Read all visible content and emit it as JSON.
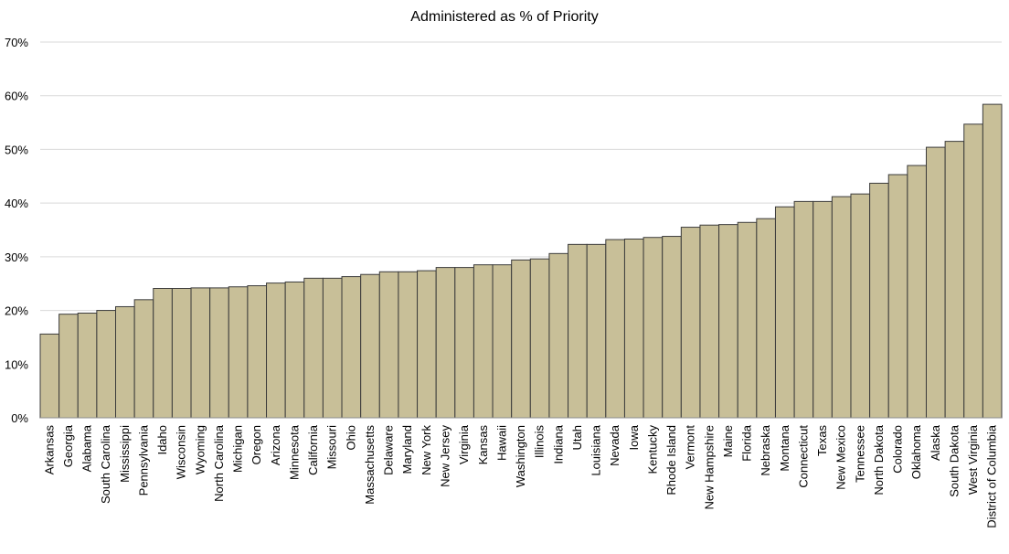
{
  "chart_data": {
    "type": "bar",
    "title": "Administered as % of Priority",
    "xlabel": "",
    "ylabel": "",
    "ylim": [
      0,
      70
    ],
    "yticks": [
      0,
      10,
      20,
      30,
      40,
      50,
      60,
      70
    ],
    "ytick_labels": [
      "0%",
      "10%",
      "20%",
      "30%",
      "40%",
      "50%",
      "60%",
      "70%"
    ],
    "grid": true,
    "legend": "none",
    "bar_color": "#c8bf98",
    "categories": [
      "Arkansas",
      "Georgia",
      "Alabama",
      "South Carolina",
      "Mississippi",
      "Pennsylvania",
      "Idaho",
      "Wisconsin",
      "Wyoming",
      "North Carolina",
      "Michigan",
      "Oregon",
      "Arizona",
      "Minnesota",
      "California",
      "Missouri",
      "Ohio",
      "Massachusetts",
      "Delaware",
      "Maryland",
      "New York",
      "New Jersey",
      "Virginia",
      "Kansas",
      "Hawaii",
      "Washington",
      "Illinois",
      "Indiana",
      "Utah",
      "Louisiana",
      "Nevada",
      "Iowa",
      "Kentucky",
      "Rhode Island",
      "Vermont",
      "New Hampshire",
      "Maine",
      "Florida",
      "Nebraska",
      "Montana",
      "Connecticut",
      "Texas",
      "New Mexico",
      "Tennessee",
      "North Dakota",
      "Colorado",
      "Oklahoma",
      "Alaska",
      "South Dakota",
      "West Virginia",
      "District of Columbia"
    ],
    "values": [
      15.6,
      19.3,
      19.5,
      20.0,
      20.7,
      22.0,
      24.1,
      24.1,
      24.2,
      24.2,
      24.4,
      24.6,
      25.1,
      25.3,
      26.0,
      26.0,
      26.3,
      26.7,
      27.2,
      27.2,
      27.4,
      28.0,
      28.0,
      28.5,
      28.5,
      29.4,
      29.6,
      30.6,
      32.3,
      32.3,
      33.2,
      33.3,
      33.6,
      33.8,
      35.5,
      35.9,
      36.0,
      36.4,
      37.1,
      39.3,
      40.3,
      40.3,
      41.2,
      41.7,
      43.7,
      45.3,
      47.0,
      50.4,
      51.5,
      54.7,
      58.4
    ]
  }
}
